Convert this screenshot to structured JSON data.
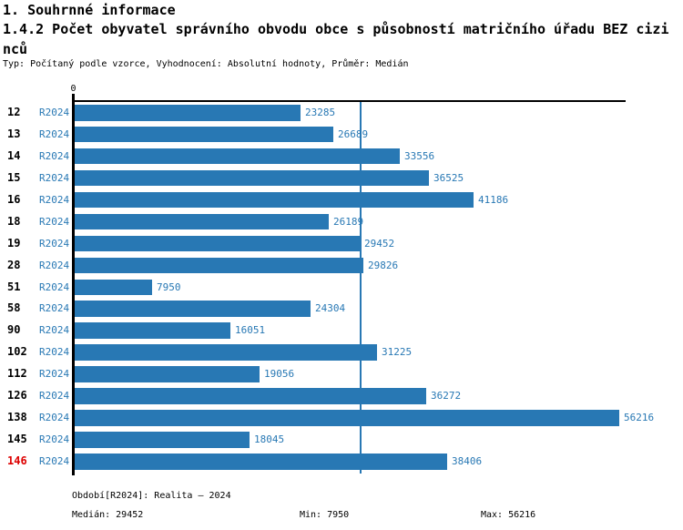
{
  "header": {
    "title": "1. Souhrnné informace",
    "subtitle": "1.4.2 Počet obyvatel správního obvodu obce s působností matričního úřadu BEZ cizinců",
    "meta": "Typ: Počítaný podle vzorce, Vyhodnocení: Absolutní hodnoty, Průměr: Medián"
  },
  "chart_data": {
    "type": "bar",
    "orientation": "horizontal",
    "title": "1.4.2 Počet obyvatel správního obvodu obce s působností matričního úřadu BEZ cizinců",
    "categories": [
      "12",
      "13",
      "14",
      "15",
      "16",
      "18",
      "19",
      "28",
      "51",
      "58",
      "90",
      "102",
      "112",
      "126",
      "138",
      "145",
      "146"
    ],
    "series": [
      {
        "name": "R2024",
        "values": [
          23285,
          26689,
          33556,
          36525,
          41186,
          26189,
          29452,
          29826,
          7950,
          24304,
          16051,
          31225,
          19056,
          36272,
          56216,
          18045,
          38406
        ]
      }
    ],
    "origin_label": "0",
    "xlim": [
      0,
      56216
    ],
    "median": 29452,
    "min": 7950,
    "max": 56216,
    "highlighted_category": "146",
    "grid": false,
    "legend_position": "none",
    "bar_color": "#2878b4",
    "accent_text_color": "#2878b4",
    "highlight_color": "#dd0000",
    "axis_color": "#000000"
  },
  "footer": {
    "period": "Období[R2024]: Realita – 2024",
    "median": "Medián: 29452",
    "min": "Min: 7950",
    "max": "Max: 56216"
  }
}
